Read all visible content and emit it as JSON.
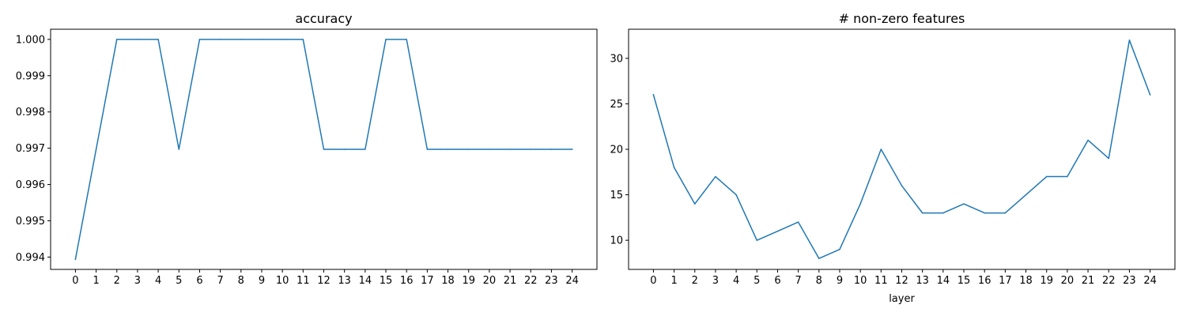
{
  "chart_data": [
    {
      "type": "line",
      "title": "accuracy",
      "xlabel": "",
      "ylabel": "",
      "x": [
        0,
        1,
        2,
        3,
        4,
        5,
        6,
        7,
        8,
        9,
        10,
        11,
        12,
        13,
        14,
        15,
        16,
        17,
        18,
        19,
        20,
        21,
        22,
        23,
        24
      ],
      "series": [
        {
          "color": "#1f77b4",
          "values": [
            0.99394,
            0.99697,
            1.0,
            1.0,
            1.0,
            0.99697,
            1.0,
            1.0,
            1.0,
            1.0,
            1.0,
            1.0,
            0.99697,
            0.99697,
            0.99697,
            1.0,
            1.0,
            0.99697,
            0.99697,
            0.99697,
            0.99697,
            0.99697,
            0.99697,
            0.99697,
            0.99697
          ]
        }
      ],
      "xlim": [
        -1.2,
        25.2
      ],
      "ylim": [
        0.99366,
        1.00028
      ],
      "yticks": [
        0.994,
        0.995,
        0.996,
        0.997,
        0.998,
        0.999,
        1.0
      ],
      "ytick_labels": [
        "0.994",
        "0.995",
        "0.996",
        "0.997",
        "0.998",
        "0.999",
        "1.000"
      ],
      "xticks": [
        0,
        1,
        2,
        3,
        4,
        5,
        6,
        7,
        8,
        9,
        10,
        11,
        12,
        13,
        14,
        15,
        16,
        17,
        18,
        19,
        20,
        21,
        22,
        23,
        24
      ],
      "xtick_labels": [
        "0",
        "1",
        "2",
        "3",
        "4",
        "5",
        "6",
        "7",
        "8",
        "9",
        "10",
        "11",
        "12",
        "13",
        "14",
        "15",
        "16",
        "17",
        "18",
        "19",
        "20",
        "21",
        "22",
        "23",
        "24"
      ],
      "grid": false,
      "legend": "none"
    },
    {
      "type": "line",
      "title": "# non-zero features",
      "xlabel": "layer",
      "ylabel": "",
      "x": [
        0,
        1,
        2,
        3,
        4,
        5,
        6,
        7,
        8,
        9,
        10,
        11,
        12,
        13,
        14,
        15,
        16,
        17,
        18,
        19,
        20,
        21,
        22,
        23,
        24
      ],
      "series": [
        {
          "color": "#1f77b4",
          "values": [
            26,
            18,
            14,
            17,
            15,
            10,
            11,
            12,
            8,
            9,
            14,
            20,
            16,
            13,
            13,
            14,
            13,
            13,
            15,
            17,
            17,
            21,
            19,
            32,
            26
          ]
        }
      ],
      "xlim": [
        -1.2,
        25.2
      ],
      "ylim": [
        6.8,
        33.2
      ],
      "yticks": [
        10,
        15,
        20,
        25,
        30
      ],
      "ytick_labels": [
        "10",
        "15",
        "20",
        "25",
        "30"
      ],
      "xticks": [
        0,
        1,
        2,
        3,
        4,
        5,
        6,
        7,
        8,
        9,
        10,
        11,
        12,
        13,
        14,
        15,
        16,
        17,
        18,
        19,
        20,
        21,
        22,
        23,
        24
      ],
      "xtick_labels": [
        "0",
        "1",
        "2",
        "3",
        "4",
        "5",
        "6",
        "7",
        "8",
        "9",
        "10",
        "11",
        "12",
        "13",
        "14",
        "15",
        "16",
        "17",
        "18",
        "19",
        "20",
        "21",
        "22",
        "23",
        "24"
      ],
      "grid": false,
      "legend": "none"
    }
  ]
}
